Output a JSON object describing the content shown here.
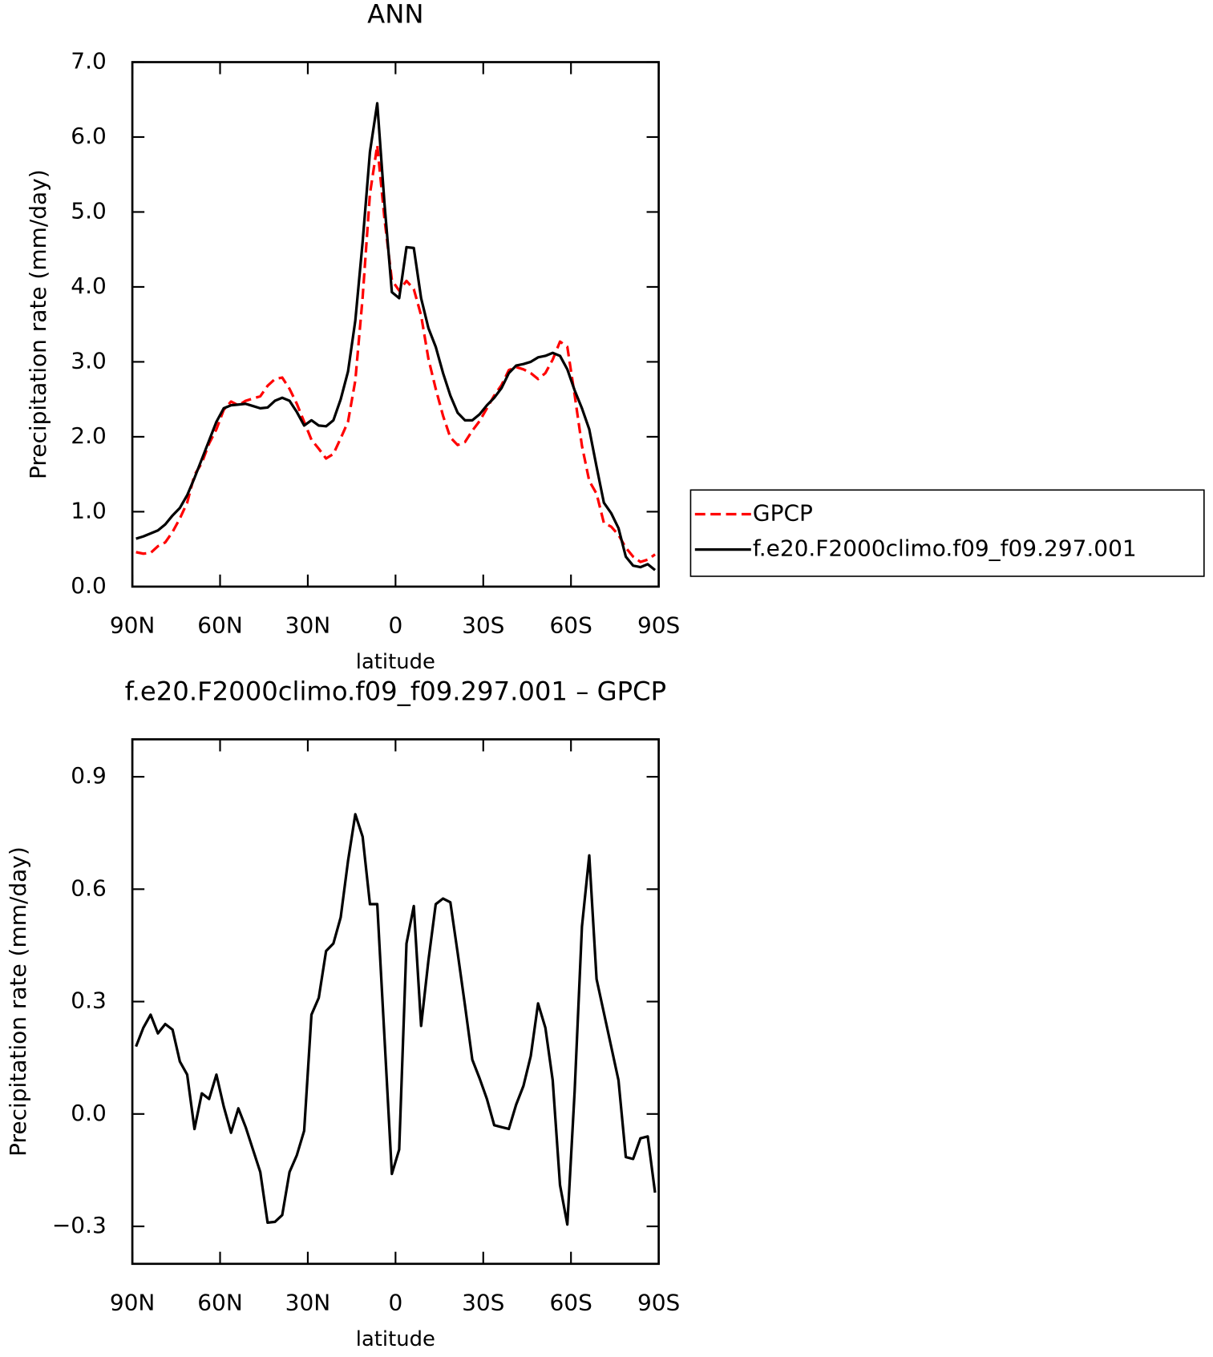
{
  "chart_data": [
    {
      "type": "line",
      "title": "ANN",
      "xlabel": "latitude",
      "ylabel": "Precipitation rate (mm/day)",
      "x": [
        88.75,
        86.25,
        83.75,
        81.25,
        78.75,
        76.25,
        73.75,
        71.25,
        68.75,
        66.25,
        63.75,
        61.25,
        58.75,
        56.25,
        53.75,
        51.25,
        48.75,
        46.25,
        43.75,
        41.25,
        38.75,
        36.25,
        33.75,
        31.25,
        28.75,
        26.25,
        23.75,
        21.25,
        18.75,
        16.25,
        13.75,
        11.25,
        8.75,
        6.25,
        3.75,
        1.25,
        -1.25,
        -3.75,
        -6.25,
        -8.75,
        -11.25,
        -13.75,
        -16.25,
        -18.75,
        -21.25,
        -23.75,
        -26.25,
        -28.75,
        -31.25,
        -33.75,
        -36.25,
        -38.75,
        -41.25,
        -43.75,
        -46.25,
        -48.75,
        -51.25,
        -53.75,
        -56.25,
        -58.75,
        -61.25,
        -63.75,
        -66.25,
        -68.75,
        -71.25,
        -73.75,
        -76.25,
        -78.75,
        -81.25,
        -83.75,
        -86.25,
        -88.75
      ],
      "xlim": [
        90,
        -90
      ],
      "xticks": [
        {
          "value": 90,
          "label": "90N"
        },
        {
          "value": 60,
          "label": "60N"
        },
        {
          "value": 30,
          "label": "30N"
        },
        0,
        {
          "value": -30,
          "label": "30S"
        },
        {
          "value": -60,
          "label": "60S"
        },
        {
          "value": -90,
          "label": "90S"
        }
      ],
      "ylim": [
        0,
        7
      ],
      "yticks": [
        {
          "value": 0,
          "label": "0.0"
        },
        {
          "value": 1,
          "label": "1.0"
        },
        {
          "value": 2,
          "label": "2.0"
        },
        {
          "value": 3,
          "label": "3.0"
        },
        {
          "value": 4,
          "label": "4.0"
        },
        {
          "value": 5,
          "label": "5.0"
        },
        {
          "value": 6,
          "label": "6.0"
        },
        {
          "value": 7,
          "label": "7.0"
        }
      ],
      "legend": "outside-right",
      "series": [
        {
          "name": "GPCP",
          "color": "#ff0000",
          "dash": true,
          "values": [
            0.46,
            0.44,
            0.45,
            0.54,
            0.59,
            0.73,
            0.91,
            1.12,
            1.49,
            1.65,
            1.91,
            2.1,
            2.36,
            2.47,
            2.42,
            2.48,
            2.51,
            2.54,
            2.68,
            2.77,
            2.79,
            2.64,
            2.44,
            2.2,
            1.96,
            1.84,
            1.71,
            1.77,
            1.98,
            2.2,
            2.75,
            3.86,
            5.24,
            5.89,
            4.9,
            4.09,
            3.95,
            4.08,
            3.97,
            3.62,
            3.04,
            2.64,
            2.28,
            1.99,
            1.89,
            1.93,
            2.08,
            2.21,
            2.38,
            2.55,
            2.69,
            2.89,
            2.93,
            2.9,
            2.85,
            2.77,
            2.85,
            3.03,
            3.27,
            3.2,
            2.56,
            1.88,
            1.41,
            1.24,
            0.85,
            0.8,
            0.69,
            0.52,
            0.4,
            0.33,
            0.36,
            0.43
          ]
        },
        {
          "name": "f.e20.F2000climo.f09_f09.297.001",
          "color": "#000000",
          "dash": false,
          "values": [
            0.64,
            0.67,
            0.71,
            0.75,
            0.83,
            0.95,
            1.05,
            1.22,
            1.45,
            1.7,
            1.95,
            2.2,
            2.38,
            2.42,
            2.43,
            2.44,
            2.41,
            2.38,
            2.39,
            2.48,
            2.52,
            2.48,
            2.33,
            2.15,
            2.22,
            2.15,
            2.14,
            2.22,
            2.5,
            2.87,
            3.55,
            4.6,
            5.8,
            6.45,
            5.1,
            3.93,
            3.85,
            4.53,
            4.52,
            3.85,
            3.45,
            3.2,
            2.85,
            2.55,
            2.32,
            2.22,
            2.22,
            2.3,
            2.42,
            2.52,
            2.65,
            2.85,
            2.95,
            2.97,
            3.0,
            3.06,
            3.08,
            3.12,
            3.08,
            2.9,
            2.62,
            2.38,
            2.1,
            1.6,
            1.12,
            0.98,
            0.78,
            0.4,
            0.28,
            0.26,
            0.3,
            0.22
          ]
        }
      ]
    },
    {
      "type": "line",
      "title": "f.e20.F2000climo.f09_f09.297.001 – GPCP",
      "xlabel": "latitude",
      "ylabel": "Precipitation rate (mm/day)",
      "x": [
        88.75,
        86.25,
        83.75,
        81.25,
        78.75,
        76.25,
        73.75,
        71.25,
        68.75,
        66.25,
        63.75,
        61.25,
        58.75,
        56.25,
        53.75,
        51.25,
        48.75,
        46.25,
        43.75,
        41.25,
        38.75,
        36.25,
        33.75,
        31.25,
        28.75,
        26.25,
        23.75,
        21.25,
        18.75,
        16.25,
        13.75,
        11.25,
        8.75,
        6.25,
        3.75,
        1.25,
        -1.25,
        -3.75,
        -6.25,
        -8.75,
        -11.25,
        -13.75,
        -16.25,
        -18.75,
        -21.25,
        -23.75,
        -26.25,
        -28.75,
        -31.25,
        -33.75,
        -36.25,
        -38.75,
        -41.25,
        -43.75,
        -46.25,
        -48.75,
        -51.25,
        -53.75,
        -56.25,
        -58.75,
        -61.25,
        -63.75,
        -66.25,
        -68.75,
        -71.25,
        -73.75,
        -76.25,
        -78.75,
        -81.25,
        -83.75,
        -86.25,
        -88.75
      ],
      "xlim": [
        90,
        -90
      ],
      "xticks": [
        {
          "value": 90,
          "label": "90N"
        },
        {
          "value": 60,
          "label": "60N"
        },
        {
          "value": 30,
          "label": "30N"
        },
        0,
        {
          "value": -30,
          "label": "30S"
        },
        {
          "value": -60,
          "label": "60S"
        },
        {
          "value": -90,
          "label": "90S"
        }
      ],
      "ylim": [
        -0.4,
        1.0
      ],
      "yticks": [
        {
          "value": -0.3,
          "label": "−0.3"
        },
        {
          "value": 0,
          "label": "0.0"
        },
        0.3,
        0.6,
        0.9
      ],
      "series": [
        {
          "color": "#000000",
          "dash": false,
          "values": [
            0.18,
            0.23,
            0.265,
            0.215,
            0.24,
            0.225,
            0.14,
            0.105,
            -0.04,
            0.055,
            0.04,
            0.105,
            0.02,
            -0.05,
            0.015,
            -0.035,
            -0.095,
            -0.155,
            -0.29,
            -0.288,
            -0.27,
            -0.155,
            -0.11,
            -0.045,
            0.265,
            0.31,
            0.435,
            0.455,
            0.525,
            0.675,
            0.8,
            0.74,
            0.56,
            0.56,
            0.2,
            -0.16,
            -0.095,
            0.455,
            0.555,
            0.235,
            0.41,
            0.56,
            0.575,
            0.565,
            0.43,
            0.29,
            0.145,
            0.095,
            0.04,
            -0.03,
            -0.035,
            -0.04,
            0.025,
            0.075,
            0.155,
            0.295,
            0.23,
            0.09,
            -0.19,
            -0.295,
            0.06,
            0.5,
            0.69,
            0.36,
            0.27,
            0.18,
            0.09,
            -0.115,
            -0.12,
            -0.065,
            -0.06,
            -0.21
          ]
        }
      ]
    }
  ]
}
